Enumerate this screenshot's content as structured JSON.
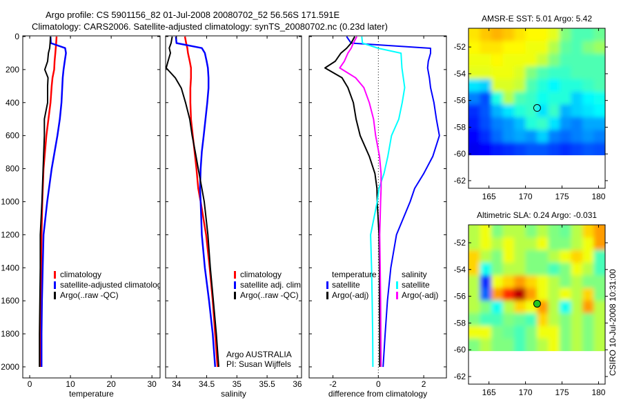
{
  "figure": {
    "title_line1": "Argo profile: CS 5901156_82 01-Jul-2008 20080702_52 56.56S 171.591E",
    "title_line2": "Climatology: CARS2006. Satellite-adjusted climatology: synTS_20080702.nc (0.23d later)",
    "side_stamp": "CSIRO 10-Jul-2008 10:31:00",
    "colors": {
      "climatology": "#ff0000",
      "satellite": "#0000ff",
      "argo": "#000000",
      "sal_satellite": "#00ffff",
      "sal_argo": "#ff00ff"
    }
  },
  "chart_data": [
    {
      "type": "line",
      "xlabel": "temperature",
      "ylabel": "",
      "xlim": [
        -1.7,
        32
      ],
      "ylim": [
        2067,
        -4
      ],
      "xticks": [
        "0",
        "10",
        "20",
        "30"
      ],
      "xtick_values": [
        0,
        10,
        20,
        30
      ],
      "yticks": [
        "0",
        "200",
        "400",
        "600",
        "800",
        "1000",
        "1200",
        "1400",
        "1600",
        "1800",
        "2000"
      ],
      "ytick_values": [
        0,
        200,
        400,
        600,
        800,
        1000,
        1200,
        1400,
        1600,
        1800,
        2000
      ],
      "depth": [
        0,
        40,
        70,
        100,
        150,
        200,
        250,
        300,
        400,
        500,
        600,
        800,
        1000,
        1200,
        1400,
        1600,
        1800,
        2000
      ],
      "series": [
        {
          "name": "climatology",
          "color": "#ff0000",
          "values": [
            6.6,
            6.5,
            6.4,
            6.3,
            6.1,
            6.0,
            5.6,
            5.4,
            5.1,
            4.6,
            4.1,
            3.4,
            3.1,
            2.9,
            2.8,
            2.7,
            2.6,
            2.5
          ]
        },
        {
          "name": "satellite-adjusted climatology",
          "color": "#0000ff",
          "values": [
            5.1,
            5.2,
            8.7,
            8.9,
            8.6,
            8.3,
            8.1,
            8.0,
            7.8,
            7.4,
            6.8,
            5.4,
            4.3,
            3.4,
            3.2,
            3.0,
            2.9,
            2.9
          ]
        },
        {
          "name": "Argo(..raw -QC)",
          "color": "#000000",
          "values": [
            5.1,
            5.0,
            4.9,
            4.6,
            4.4,
            3.7,
            4.5,
            4.4,
            4.4,
            3.6,
            3.6,
            3.3,
            3.0,
            2.6,
            2.6,
            2.5,
            2.4,
            2.4
          ]
        }
      ],
      "legend": [
        "climatology",
        "satellite-adjusted climatology",
        "Argo(..raw -QC)"
      ]
    },
    {
      "type": "line",
      "xlabel": "salinity",
      "xlim": [
        33.82,
        36.07
      ],
      "ylim": [
        2067,
        -4
      ],
      "xticks": [
        "34",
        "34.5",
        "35",
        "35.5",
        "36"
      ],
      "xtick_values": [
        34,
        34.5,
        35,
        35.5,
        36
      ],
      "depth": [
        0,
        40,
        70,
        100,
        150,
        190,
        250,
        313,
        400,
        501,
        600,
        697,
        800,
        919,
        1000,
        1200,
        1400,
        1600,
        1800,
        2000
      ],
      "series": [
        {
          "name": "climatology",
          "color": "#ff0000",
          "values": [
            34.14,
            34.16,
            34.18,
            34.19,
            34.22,
            34.24,
            34.24,
            34.23,
            34.23,
            34.24,
            34.27,
            34.3,
            34.33,
            34.36,
            34.4,
            34.49,
            34.55,
            34.6,
            34.64,
            34.68
          ]
        },
        {
          "name": "satellite adj. clim.",
          "color": "#0000ff",
          "values": [
            33.99,
            34.0,
            34.42,
            34.47,
            34.5,
            34.52,
            34.53,
            34.53,
            34.51,
            34.48,
            34.45,
            34.42,
            34.4,
            34.39,
            34.4,
            34.42,
            34.47,
            34.54,
            34.6,
            34.64
          ]
        },
        {
          "name": "Argo(..raw -QC)",
          "color": "#000000",
          "values": [
            33.93,
            33.91,
            33.88,
            33.9,
            33.86,
            33.83,
            33.98,
            34.08,
            34.15,
            34.22,
            34.26,
            34.31,
            34.36,
            34.42,
            34.46,
            34.52,
            34.56,
            34.61,
            34.66,
            34.7
          ]
        }
      ],
      "legend": [
        "climatology",
        "satellite adj. clim.",
        "Argo(..raw -QC)"
      ],
      "annotation_line1": "Argo AUSTRALIA",
      "annotation_line2": "PI: Susan Wijffels"
    },
    {
      "type": "line",
      "xlabel": "difference from climatology",
      "xlim": [
        -3.05,
        3.0
      ],
      "ylim": [
        2067,
        -4
      ],
      "xticks": [
        "-2",
        "0",
        "2"
      ],
      "xtick_values": [
        -2,
        0,
        2
      ],
      "depth": [
        0,
        40,
        71,
        101,
        150,
        190,
        250,
        309,
        400,
        501,
        600,
        725,
        830,
        919,
        1000,
        1200,
        1400,
        1600,
        1800,
        2000
      ],
      "series": [
        {
          "name": "temperature satellite",
          "color": "#0000ff",
          "values": [
            -1.4,
            -1.2,
            2.3,
            2.3,
            2.2,
            2.17,
            2.25,
            2.3,
            2.45,
            2.56,
            2.69,
            2.4,
            2.0,
            1.6,
            1.4,
            0.8,
            0.55,
            0.4,
            0.3,
            0.21
          ]
        },
        {
          "name": "temperature Argo(-adj)",
          "color": "#000000",
          "values": [
            -1.04,
            -1.2,
            -1.4,
            -1.65,
            -1.9,
            -2.35,
            -1.6,
            -1.34,
            -1.1,
            -0.98,
            -0.8,
            -0.4,
            -0.15,
            -0.06,
            -0.05,
            0.03,
            0.05,
            0.05,
            0.06,
            0.06
          ]
        },
        {
          "name": "salinity satellite",
          "color": "#00ffff",
          "values": [
            -0.73,
            -0.7,
            0.0,
            1.0,
            1.02,
            1.04,
            1.1,
            1.16,
            1.05,
            0.9,
            0.58,
            0.42,
            0.25,
            0.03,
            -0.05,
            -0.34,
            -0.3,
            -0.27,
            -0.25,
            -0.24
          ]
        },
        {
          "name": "salinity Argo(-adj)",
          "color": "#ff00ff",
          "values": [
            -0.95,
            -1.1,
            -1.2,
            -1.34,
            -1.5,
            -1.7,
            -1.0,
            -0.64,
            -0.4,
            -0.21,
            -0.12,
            0.05,
            0.12,
            0.12,
            0.1,
            0.06,
            0.08,
            0.1,
            0.11,
            0.12
          ]
        }
      ],
      "legend_headers": [
        "temperature",
        "salinity"
      ],
      "legend": [
        "satellite",
        "Argo(-adj)",
        "satellite",
        "Argo(-adj)"
      ]
    },
    {
      "type": "heatmap",
      "title": "AMSR-E SST: 5.01 Argo: 5.42",
      "xlim": [
        162.2,
        180.9
      ],
      "ylim": [
        -50.6,
        -62.57
      ],
      "xticks": [
        "165",
        "170",
        "175",
        "180"
      ],
      "xtick_values": [
        165,
        170,
        175,
        180
      ],
      "yticks": [
        "-52",
        "-54",
        "-56",
        "-58",
        "-60",
        "-62"
      ],
      "ytick_values": [
        -52,
        -54,
        -56,
        -58,
        -60,
        -62
      ],
      "lon_range": [
        162.2,
        180.9
      ],
      "lat_range": [
        -50.6,
        -60.1
      ],
      "clim": [
        0.5,
        10.5
      ],
      "values": [
        [
          7.0,
          7.3,
          7.5,
          7.3,
          7.0,
          6.8,
          6.8,
          6.5,
          5.5,
          5.0,
          5.0,
          5.3
        ],
        [
          6.8,
          7.0,
          7.0,
          6.8,
          6.8,
          6.6,
          6.6,
          6.0,
          5.2,
          5.0,
          5.5,
          5.8
        ],
        [
          6.6,
          6.6,
          6.8,
          6.6,
          6.6,
          6.6,
          6.2,
          5.5,
          5.0,
          5.0,
          5.0,
          5.0
        ],
        [
          6.5,
          6.5,
          6.6,
          6.6,
          6.4,
          5.5,
          5.0,
          4.8,
          4.8,
          5.0,
          5.0,
          5.0
        ],
        [
          4.0,
          3.8,
          6.4,
          6.4,
          6.2,
          5.0,
          4.6,
          4.2,
          4.6,
          4.6,
          4.8,
          5.0
        ],
        [
          3.0,
          2.5,
          4.5,
          6.0,
          5.0,
          4.8,
          4.4,
          4.6,
          4.6,
          3.8,
          4.2,
          4.4
        ],
        [
          2.2,
          2.6,
          3.5,
          4.0,
          4.6,
          4.8,
          4.0,
          4.8,
          3.5,
          3.8,
          4.0,
          4.2
        ],
        [
          2.0,
          2.5,
          3.0,
          3.2,
          3.6,
          4.6,
          4.8,
          4.0,
          3.2,
          3.0,
          3.4,
          3.4
        ],
        [
          1.8,
          2.2,
          2.8,
          3.2,
          3.4,
          3.2,
          3.8,
          3.0,
          2.8,
          3.0,
          3.2,
          3.0
        ],
        [
          1.6,
          1.8,
          2.0,
          2.2,
          2.4,
          2.6,
          2.6,
          2.4,
          2.2,
          2.4,
          2.6,
          2.5
        ]
      ],
      "marker": {
        "lon": 171.591,
        "lat": -56.56,
        "filled": false
      }
    },
    {
      "type": "heatmap",
      "title": "Altimetric SLA: 0.24 Argo: -0.031",
      "xlim": [
        162.2,
        180.9
      ],
      "ylim": [
        -50.66,
        -62.57
      ],
      "xticks": [
        "165",
        "170",
        "175",
        "180"
      ],
      "xtick_values": [
        165,
        170,
        175,
        180
      ],
      "yticks": [
        "-52",
        "-54",
        "-56",
        "-58",
        "-60",
        "-62"
      ],
      "ytick_values": [
        -52,
        -54,
        -56,
        -58,
        -60,
        -62
      ],
      "lon_range": [
        162.2,
        180.9
      ],
      "lat_range": [
        -50.66,
        -60.1
      ],
      "clim": [
        -0.45,
        0.45
      ],
      "values": [
        [
          0.05,
          0.1,
          0.0,
          0.05,
          0.05,
          0.0,
          0.05,
          0.0,
          -0.02,
          0.05,
          0.15,
          0.2
        ],
        [
          0.05,
          0.1,
          0.05,
          0.1,
          0.05,
          0.05,
          0.1,
          0.0,
          0.0,
          0.05,
          0.1,
          0.2
        ],
        [
          0.15,
          0.05,
          0.0,
          0.1,
          0.05,
          0.0,
          0.0,
          0.05,
          0.1,
          0.15,
          0.1,
          -0.05
        ],
        [
          0.15,
          -0.1,
          0.0,
          0.05,
          0.05,
          0.0,
          0.0,
          -0.05,
          0.0,
          0.1,
          0.05,
          -0.05
        ],
        [
          0.05,
          -0.3,
          0.1,
          0.15,
          0.2,
          0.15,
          0.1,
          0.05,
          0.0,
          0.05,
          0.0,
          0.0
        ],
        [
          0.05,
          -0.25,
          0.2,
          0.3,
          0.4,
          0.2,
          0.1,
          0.05,
          0.1,
          0.05,
          0.15,
          0.0
        ],
        [
          0.05,
          0.0,
          -0.1,
          0.05,
          0.15,
          0.1,
          0.2,
          0.05,
          -0.1,
          0.05,
          0.2,
          0.05
        ],
        [
          0.0,
          -0.05,
          -0.05,
          0.0,
          -0.02,
          -0.05,
          0.15,
          0.05,
          0.0,
          0.05,
          0.0,
          0.05
        ],
        [
          0.1,
          0.1,
          0.0,
          -0.02,
          -0.05,
          0.0,
          0.1,
          0.1,
          0.0,
          0.05,
          0.0,
          0.05
        ],
        [
          0.0,
          0.05,
          0.0,
          0.0,
          -0.05,
          0.0,
          0.05,
          0.1,
          0.0,
          0.05,
          0.0,
          0.05
        ]
      ],
      "marker": {
        "lon": 171.591,
        "lat": -56.56,
        "filled": true
      }
    }
  ]
}
